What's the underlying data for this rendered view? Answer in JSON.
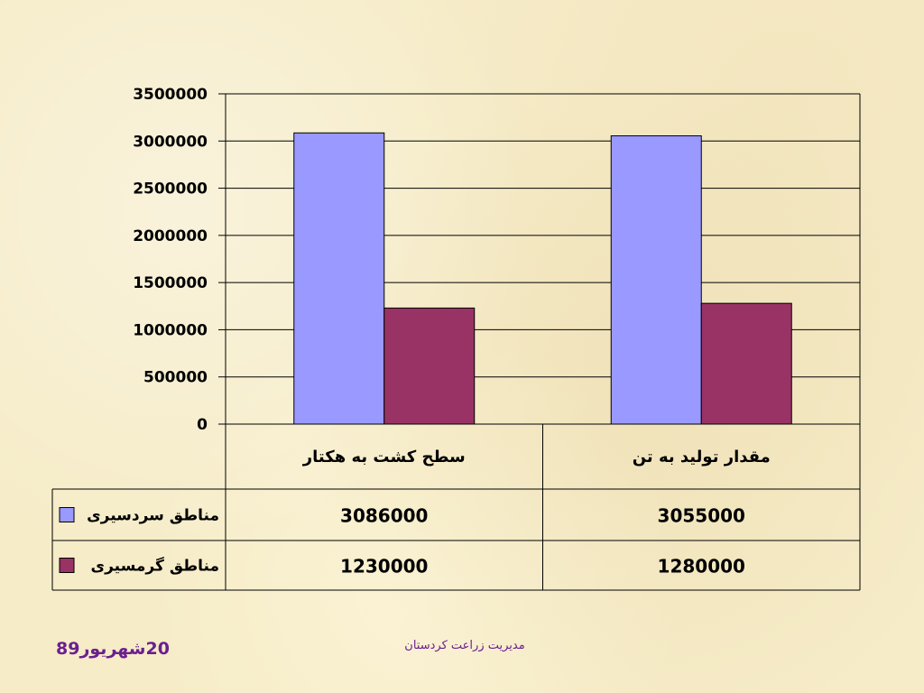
{
  "chart_data": {
    "type": "bar",
    "categories": [
      "سطح کشت به هکتار",
      "مقدار تولید به تن"
    ],
    "series": [
      {
        "name": "مناطق سردسیری",
        "values": [
          3086000,
          3055000
        ],
        "color": "#9999ff"
      },
      {
        "name": "مناطق گرمسیری",
        "values": [
          1230000,
          1280000
        ],
        "color": "#993366"
      }
    ],
    "ylim": [
      0,
      3500000
    ],
    "yticks": [
      "0",
      "500000",
      "1000000",
      "1500000",
      "2000000",
      "2500000",
      "3000000",
      "3500000"
    ],
    "grid": true,
    "legend": "data-table",
    "data_table": {
      "rows": [
        {
          "label": "مناطق سردسیری",
          "cells": [
            "3086000",
            "3055000"
          ]
        },
        {
          "label": "مناطق گرمسیری",
          "cells": [
            "1230000",
            "1280000"
          ]
        }
      ]
    },
    "title": "",
    "xlabel": "",
    "ylabel": ""
  },
  "footer": {
    "date": "20شهریور89",
    "center_text": "مدیریت زراعت کردستان"
  }
}
